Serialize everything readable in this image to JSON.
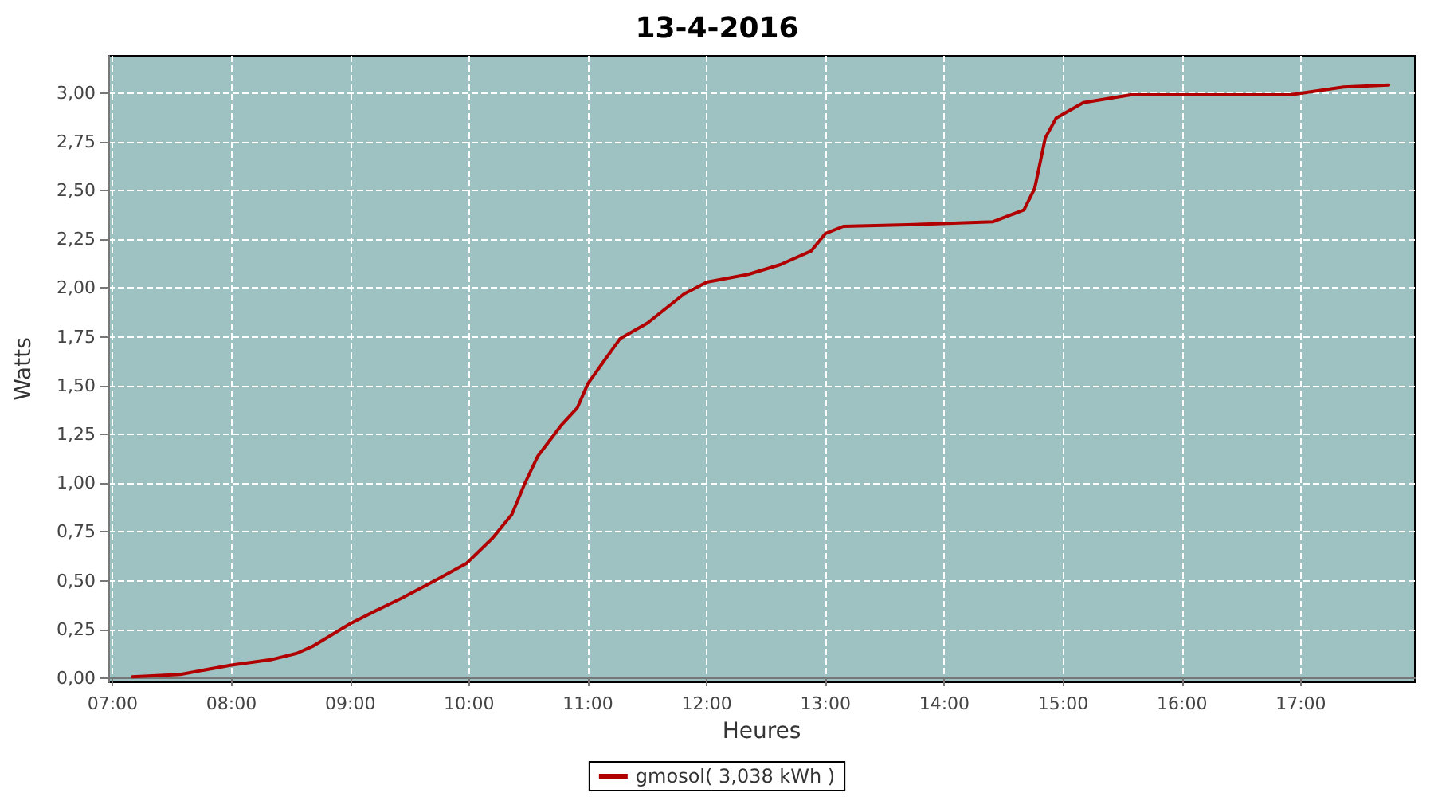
{
  "chart_data": {
    "type": "line",
    "title": "13-4-2016",
    "xlabel": "Heures",
    "ylabel": "Watts",
    "x": [
      7.165,
      7.57,
      8.0,
      8.33,
      8.55,
      8.68,
      9.0,
      9.22,
      9.44,
      9.71,
      9.98,
      10.2,
      10.36,
      10.47,
      10.58,
      10.78,
      10.91,
      11.0,
      11.14,
      11.27,
      11.5,
      11.81,
      12.0,
      12.35,
      12.62,
      12.88,
      13.0,
      13.15,
      13.69,
      14.41,
      14.67,
      14.76,
      14.85,
      14.94,
      15.17,
      15.57,
      16.91,
      17.36,
      17.74
    ],
    "series": [
      {
        "name": "gmosol( 3,038 kWh )",
        "color": "#b00000",
        "values": [
          0.008,
          0.02,
          0.068,
          0.095,
          0.128,
          0.163,
          0.28,
          0.348,
          0.413,
          0.5,
          0.59,
          0.72,
          0.84,
          1.0,
          1.14,
          1.3,
          1.385,
          1.51,
          1.63,
          1.74,
          1.82,
          1.97,
          2.03,
          2.07,
          2.12,
          2.19,
          2.28,
          2.316,
          2.324,
          2.34,
          2.4,
          2.51,
          2.77,
          2.87,
          2.95,
          2.99,
          2.99,
          3.03,
          3.04
        ]
      }
    ],
    "xlim": [
      6.964,
      17.96
    ],
    "xticks": [
      {
        "value": 7,
        "label": "07:00"
      },
      {
        "value": 8,
        "label": "08:00"
      },
      {
        "value": 9,
        "label": "09:00"
      },
      {
        "value": 10,
        "label": "10:00"
      },
      {
        "value": 11,
        "label": "11:00"
      },
      {
        "value": 12,
        "label": "12:00"
      },
      {
        "value": 13,
        "label": "13:00"
      },
      {
        "value": 14,
        "label": "14:00"
      },
      {
        "value": 15,
        "label": "15:00"
      },
      {
        "value": 16,
        "label": "16:00"
      },
      {
        "value": 17,
        "label": "17:00"
      }
    ],
    "ylim": [
      -0.02,
      3.19
    ],
    "yticks": [
      {
        "value": 0,
        "label": "0,00"
      },
      {
        "value": 0.25,
        "label": "0,25"
      },
      {
        "value": 0.5,
        "label": "0,50"
      },
      {
        "value": 0.75,
        "label": "0,75"
      },
      {
        "value": 1,
        "label": "1,00"
      },
      {
        "value": 1.25,
        "label": "1,25"
      },
      {
        "value": 1.5,
        "label": "1,50"
      },
      {
        "value": 1.75,
        "label": "1,75"
      },
      {
        "value": 2,
        "label": "2,00"
      },
      {
        "value": 2.25,
        "label": "2,25"
      },
      {
        "value": 2.5,
        "label": "2,50"
      },
      {
        "value": 2.75,
        "label": "2,75"
      },
      {
        "value": 3,
        "label": "3,00"
      }
    ],
    "grid": true,
    "legend": "bottom",
    "marker": "none",
    "line_style": "solid"
  }
}
